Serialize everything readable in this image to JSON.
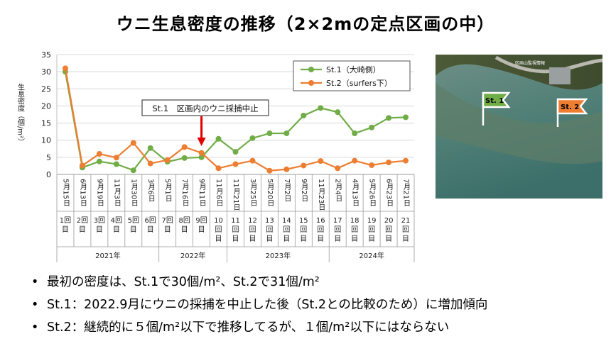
{
  "title": "ウニ生息密度の推移（2×2mの定点区画の中）",
  "chart_data": {
    "type": "line",
    "ylabel": "生息密度（個/m²）",
    "ylim": [
      0,
      35
    ],
    "yticks": [
      0,
      5,
      10,
      15,
      20,
      25,
      30,
      35
    ],
    "grid": true,
    "legend_position": "top-right",
    "categories": [
      "5月15日",
      "6月13日",
      "9月19日",
      "11月3日",
      "1月30日",
      "3月6日",
      "5月1日",
      "7月16日",
      "9月11日",
      "11月6日",
      "11月21日",
      "3月25日",
      "5月20日",
      "7月2日",
      "9月2日",
      "11月23日",
      "2月4日",
      "4月13日",
      "5月26日",
      "6月23日",
      "7月21日"
    ],
    "counts": [
      "1回目",
      "2回目",
      "3回目",
      "4回目",
      "5回目",
      "6回目",
      "7回目",
      "8回目",
      "9回目",
      "10回目",
      "11回目",
      "12回目",
      "13回目",
      "14回目",
      "15回目",
      "16回目",
      "17回目",
      "18回目",
      "19回目",
      "20回目",
      "21回目"
    ],
    "years": [
      {
        "label": "2021年",
        "start": 0,
        "end": 5
      },
      {
        "label": "2022年",
        "start": 6,
        "end": 9
      },
      {
        "label": "2023年",
        "start": 10,
        "end": 15
      },
      {
        "label": "2024年",
        "start": 16,
        "end": 20
      }
    ],
    "series": [
      {
        "name": "St.1（大崎側）",
        "color": "#70ad47",
        "values": [
          30,
          2,
          3.8,
          3,
          1.2,
          7.7,
          3.7,
          4.8,
          5,
          10.4,
          6.6,
          10.6,
          12,
          12,
          17.2,
          19.4,
          18.2,
          12,
          13.7,
          16.5,
          16.7
        ]
      },
      {
        "name": "St.2（surfers下）",
        "color": "#ed7d31",
        "values": [
          31,
          2.6,
          6,
          4.9,
          9.2,
          3.2,
          4.2,
          8,
          6.3,
          1.8,
          3,
          4,
          1.1,
          1.5,
          2.6,
          3.9,
          1.8,
          4,
          2.7,
          3.5,
          4
        ]
      }
    ],
    "annotation": {
      "text": "St.1　区画内のウニ採捕中止",
      "at_index": 8
    }
  },
  "photo": {
    "flags": [
      {
        "label": "St. 1",
        "color": "#70ad47"
      },
      {
        "label": "St. 2",
        "color": "#ed7d31"
      }
    ],
    "caption": "区画山監視情報"
  },
  "bullets": [
    "最初の密度は、St.1で30個/m²、St.2で31個/m²",
    "St.1：2022.9月にウニの採捕を中止した後（St.2との比較のため）に増加傾向",
    "St.2：継続的に５個/m²以下で推移してるが、１個/m²以下にはならない"
  ]
}
